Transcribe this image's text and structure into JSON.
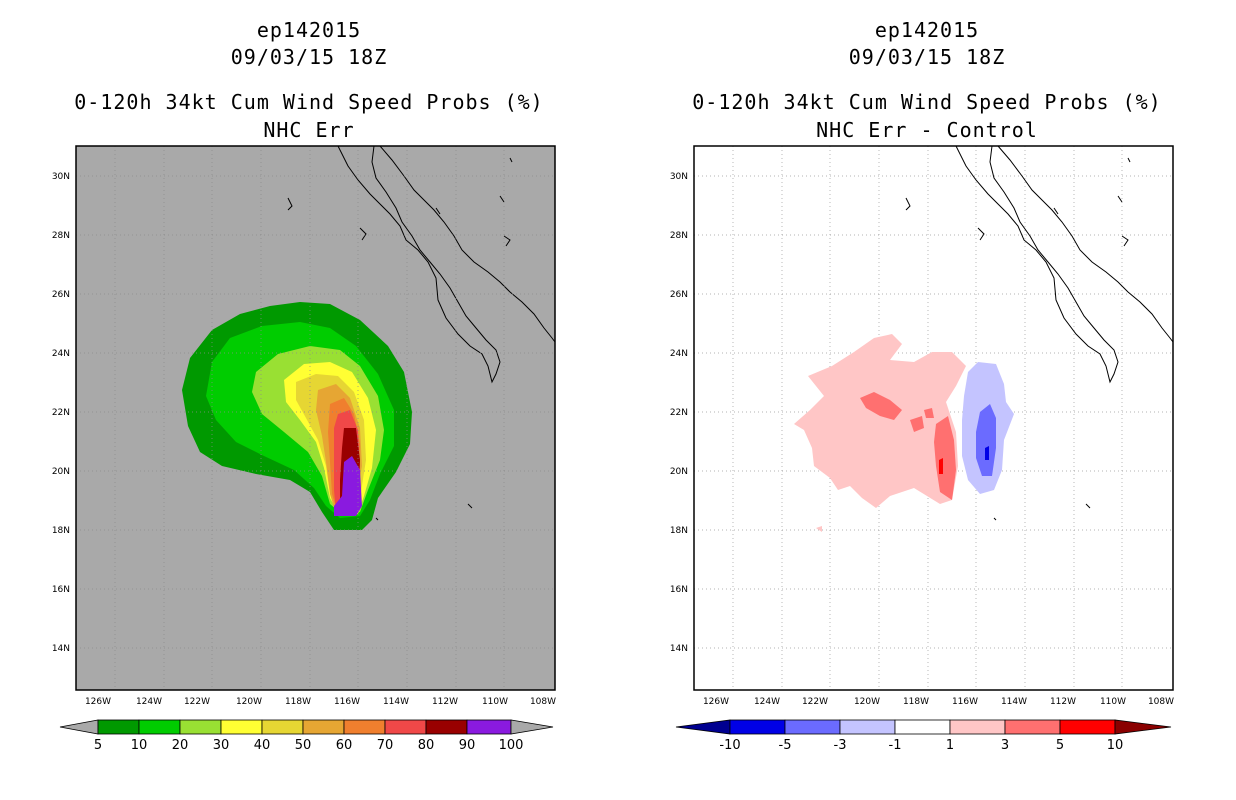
{
  "left": {
    "storm_id": "ep142015",
    "datetime": "09/03/15 18Z",
    "title": "0-120h 34kt Cum Wind Speed Probs (%)",
    "subtitle": "NHC Err",
    "background_color": "#a9a9a9",
    "colorbar": {
      "labels": [
        "5",
        "10",
        "20",
        "30",
        "40",
        "50",
        "60",
        "70",
        "80",
        "90",
        "100"
      ],
      "colors": [
        "#009900",
        "#00cc00",
        "#99e033",
        "#ffff33",
        "#e6d633",
        "#e6a633",
        "#f07f2e",
        "#f04848",
        "#990000",
        "#8a1adf"
      ],
      "end_color": "#a9a9a9"
    }
  },
  "right": {
    "storm_id": "ep142015",
    "datetime": "09/03/15 18Z",
    "title": "0-120h 34kt Cum Wind Speed Probs (%)",
    "subtitle": "NHC Err - Control",
    "background_color": "#ffffff",
    "colorbar": {
      "labels": [
        "-10",
        "-5",
        "-3",
        "-1",
        "1",
        "3",
        "5",
        "10"
      ],
      "colors": [
        "#0000e6",
        "#6b6bff",
        "#c4c4ff",
        "#ffffff",
        "#ffc6c6",
        "#ff7070",
        "#ff0000"
      ],
      "end_low": "#000090",
      "end_high": "#8a0000"
    }
  },
  "axes": {
    "lon_ticks": [
      "126W",
      "124W",
      "122W",
      "120W",
      "118W",
      "116W",
      "114W",
      "112W",
      "110W",
      "108W"
    ],
    "lat_ticks": [
      "30N",
      "28N",
      "26N",
      "24N",
      "22N",
      "20N",
      "18N",
      "16N",
      "14N"
    ]
  }
}
